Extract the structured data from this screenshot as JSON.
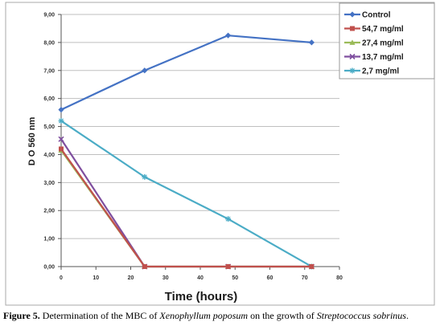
{
  "chart_data": {
    "type": "line",
    "xlabel": "Time (hours)",
    "ylabel": "D O 560 nm",
    "xlim": [
      0,
      80
    ],
    "ylim": [
      0,
      9
    ],
    "xticks": [
      "0",
      "10",
      "20",
      "30",
      "40",
      "50",
      "60",
      "70",
      "80"
    ],
    "yticks": [
      "0,00",
      "1,00",
      "2,00",
      "3,00",
      "4,00",
      "5,00",
      "6,00",
      "7,00",
      "8,00",
      "9,00"
    ],
    "grid": "horizontal",
    "legend_position": "top-right",
    "x": [
      0,
      24,
      48,
      72
    ],
    "series": [
      {
        "name": "Control",
        "color": "#4472c4",
        "marker": "diamond",
        "values": [
          5.6,
          7.0,
          8.25,
          8.0
        ]
      },
      {
        "name": "54,7 mg/ml",
        "color": "#c0504d",
        "marker": "square",
        "values": [
          4.2,
          0.0,
          0.0,
          0.0
        ]
      },
      {
        "name": "27,4 mg/ml",
        "color": "#9bbb59",
        "marker": "triangle",
        "values": [
          4.15,
          0.0,
          0.0,
          0.0
        ]
      },
      {
        "name": "13,7 mg/ml",
        "color": "#7f4f9f",
        "marker": "x",
        "values": [
          4.55,
          0.0,
          0.0,
          0.0
        ]
      },
      {
        "name": "2,7 mg/ml",
        "color": "#4bacc6",
        "marker": "star",
        "values": [
          5.2,
          3.2,
          1.7,
          0.0
        ]
      }
    ]
  },
  "caption": {
    "label": "Figure 5.",
    "text_1": " Determination of the MBC of ",
    "species_1": "Xenophyllum poposum",
    "text_2": " on the growth of ",
    "species_2": "Streptococcus sobrinus",
    "text_3": "."
  }
}
